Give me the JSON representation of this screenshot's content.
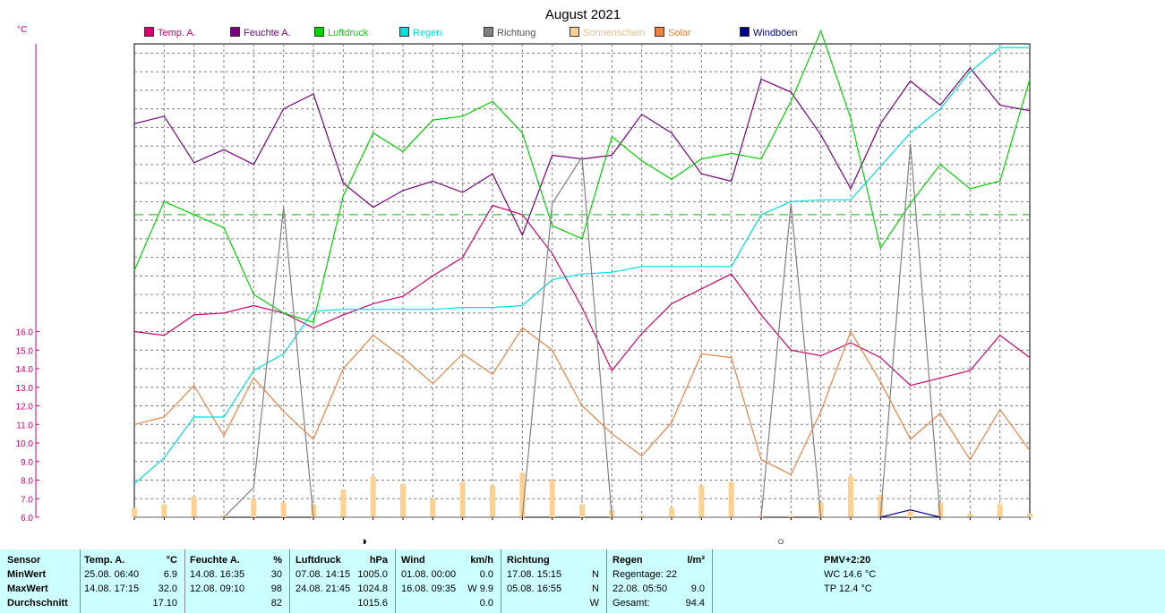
{
  "title": "August 2021",
  "y_unit": "°C",
  "legend": [
    {
      "label": "Temp. A.",
      "color": "#d4006f"
    },
    {
      "label": "Feuchte A.",
      "color": "#7a0080"
    },
    {
      "label": "Luftdruck",
      "color": "#00d400"
    },
    {
      "label": "Regen",
      "color": "#00e0e0"
    },
    {
      "label": "Richtung",
      "color": "#808080"
    },
    {
      "label": "Sonnenschein",
      "color": "#ffd090"
    },
    {
      "label": "Solar",
      "color": "#f08040"
    },
    {
      "label": "Windböen",
      "color": "#000090"
    }
  ],
  "moon": {
    "full": "◑",
    "new": "○"
  },
  "chart_data": {
    "type": "line",
    "title": "August 2021",
    "ylabel": "°C",
    "yticks": [
      "6.0",
      "7.0",
      "8.0",
      "9.0",
      "10.0",
      "11.0",
      "12.0",
      "13.0",
      "14.0",
      "15.0",
      "16.0"
    ],
    "ylim": [
      6,
      31.5
    ],
    "x": [
      1,
      2,
      3,
      4,
      5,
      6,
      7,
      8,
      9,
      10,
      11,
      12,
      13,
      14,
      15,
      16,
      17,
      18,
      19,
      20,
      21,
      22,
      23,
      24,
      25,
      26,
      27,
      28,
      29,
      30,
      31
    ],
    "reference_line": 22.3,
    "series": [
      {
        "name": "Temp. A.",
        "color": "#d4006f",
        "values": [
          16.0,
          15.8,
          16.9,
          17.0,
          17.4,
          17.0,
          16.2,
          16.9,
          17.5,
          17.9,
          19.0,
          20.0,
          22.8,
          22.3,
          20.2,
          17.3,
          13.9,
          15.9,
          17.5,
          18.3,
          19.1,
          16.9,
          15.0,
          14.7,
          15.4,
          14.6,
          13.1,
          13.5,
          13.9,
          15.8,
          14.6
        ]
      },
      {
        "name": "Feuchte A.",
        "color": "#7a0080",
        "values": [
          27.2,
          27.6,
          25.1,
          25.8,
          25.0,
          28.0,
          28.8,
          24.0,
          22.7,
          23.6,
          24.1,
          23.5,
          24.5,
          21.2,
          25.5,
          25.3,
          25.5,
          27.7,
          26.7,
          24.5,
          24.1,
          29.6,
          28.9,
          26.6,
          23.7,
          27.2,
          29.5,
          28.2,
          30.2,
          28.2,
          27.9
        ]
      },
      {
        "name": "Luftdruck",
        "color": "#00d400",
        "values": [
          19.3,
          23.0,
          22.3,
          21.6,
          18.0,
          17.0,
          16.5,
          23.3,
          26.7,
          25.7,
          27.4,
          27.6,
          28.4,
          26.7,
          21.7,
          21.0,
          26.5,
          25.2,
          24.2,
          25.3,
          25.6,
          25.3,
          28.4,
          32.2,
          27.5,
          20.5,
          22.9,
          25.0,
          23.7,
          24.1,
          29.6
        ]
      },
      {
        "name": "Regen",
        "color": "#00e0e0",
        "values": [
          7.8,
          9.2,
          11.4,
          11.4,
          13.9,
          14.8,
          17.1,
          17.2,
          17.2,
          17.2,
          17.2,
          17.3,
          17.3,
          17.4,
          18.8,
          19.1,
          19.2,
          19.5,
          19.5,
          19.5,
          19.5,
          22.3,
          23.0,
          23.1,
          23.1,
          24.9,
          26.7,
          28.0,
          30.0,
          31.3,
          31.3
        ]
      },
      {
        "name": "Richtung",
        "color": "#808080",
        "values": [
          6.0,
          6.0,
          6.0,
          6.0,
          7.6,
          22.7,
          6.0,
          6.0,
          6.0,
          6.0,
          6.0,
          6.0,
          6.0,
          6.0,
          22.9,
          25.4,
          6.0,
          6.0,
          6.0,
          6.0,
          6.0,
          6.0,
          22.9,
          6.0,
          6.0,
          6.0,
          26.1,
          6.0,
          6.0,
          6.0,
          6.0
        ]
      },
      {
        "name": "Solar",
        "color": "#f08040",
        "values": [
          11.0,
          11.4,
          13.1,
          10.4,
          13.5,
          11.7,
          10.2,
          14.0,
          15.8,
          14.6,
          13.2,
          14.8,
          13.7,
          16.2,
          15.0,
          12.0,
          10.5,
          9.3,
          11.1,
          14.8,
          14.6,
          9.1,
          8.3,
          11.7,
          16.0,
          13.3,
          10.2,
          11.6,
          9.1,
          11.8,
          9.6
        ]
      },
      {
        "name": "Windböen",
        "color": "#000090",
        "values": [
          null,
          null,
          null,
          null,
          null,
          null,
          null,
          null,
          null,
          null,
          null,
          null,
          null,
          null,
          null,
          null,
          null,
          null,
          null,
          null,
          null,
          null,
          null,
          null,
          null,
          6.0,
          6.4,
          6.0,
          null,
          null,
          null
        ]
      },
      {
        "name": "Sonnenschein",
        "color": "#ffd090",
        "kind": "bar",
        "values": [
          6.5,
          6.7,
          7.1,
          6.1,
          7.0,
          6.8,
          6.7,
          7.5,
          8.2,
          7.8,
          7.0,
          7.9,
          7.7,
          8.4,
          8.0,
          6.7,
          6.4,
          6.1,
          6.5,
          7.7,
          7.9,
          6.1,
          6.1,
          6.8,
          8.2,
          7.2,
          6.4,
          6.8,
          6.2,
          6.7,
          6.2
        ]
      }
    ]
  },
  "stats": {
    "sensor": {
      "header": "Sensor",
      "labels": [
        "MinWert",
        "MaxWert",
        "Durchschnitt"
      ]
    },
    "temp": {
      "header": "Temp. A.",
      "unit": "°C",
      "min_time": "25.08.  06:40",
      "min_val": "6.9",
      "max_time": "14.08.  17:15",
      "max_val": "32.0",
      "avg_val": "17.10"
    },
    "feuchte": {
      "header": "Feuchte A.",
      "unit": "%",
      "min_time": "14.08.  16:35",
      "min_val": "30",
      "max_time": "12.08.  09:10",
      "max_val": "98",
      "avg_val": "82"
    },
    "luftdruck": {
      "header": "Luftdruck",
      "unit": "hPa",
      "min_time": "07.08.  14:15",
      "min_val": "1005.0",
      "max_time": "24.08.  21:45",
      "max_val": "1024.8",
      "avg_val": "1015.6"
    },
    "wind": {
      "header": "Wind",
      "unit": "km/h",
      "min_time": "01.08.  00:00",
      "min_val": "0.0",
      "max_time": "16.08.  09:35",
      "max_val": "W 9.9",
      "avg_val": "0.0"
    },
    "richtung": {
      "header": "Richtung",
      "min_time": "17.08.  15:15",
      "min_val": "N",
      "max_time": "05.08.  16:55",
      "max_val": "N",
      "avg_val": "W"
    },
    "regen": {
      "header": "Regen",
      "unit": "l/m²",
      "days": "Regentage: 22",
      "max_time": "22.08.  05:50",
      "max_val": "9.0",
      "total_label": "Gesamt:",
      "total_val": "94.4"
    },
    "pmv": {
      "header": "PMV+2:20",
      "wc": "WC 14.6 °C",
      "tp": "TP 12.4 °C"
    }
  }
}
